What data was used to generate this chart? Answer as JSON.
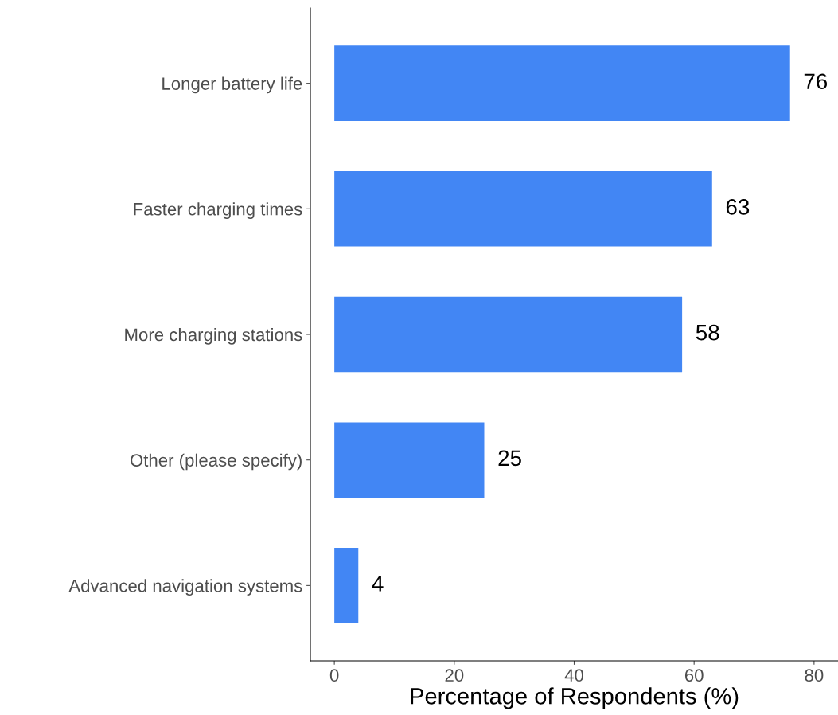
{
  "chart_data": {
    "type": "bar",
    "orientation": "horizontal",
    "xlabel": "Percentage of Respondents (%)",
    "categories": [
      "Longer battery life",
      "Faster charging times",
      "More charging stations",
      "Other (please specify)",
      "Advanced navigation systems"
    ],
    "values": [
      76,
      63,
      58,
      25,
      4
    ],
    "color": "#4286f4",
    "xlim": [
      -4,
      84
    ],
    "xticks": [
      0,
      20,
      40,
      60,
      80
    ],
    "data_labels": true,
    "grid": false,
    "legend": false
  }
}
